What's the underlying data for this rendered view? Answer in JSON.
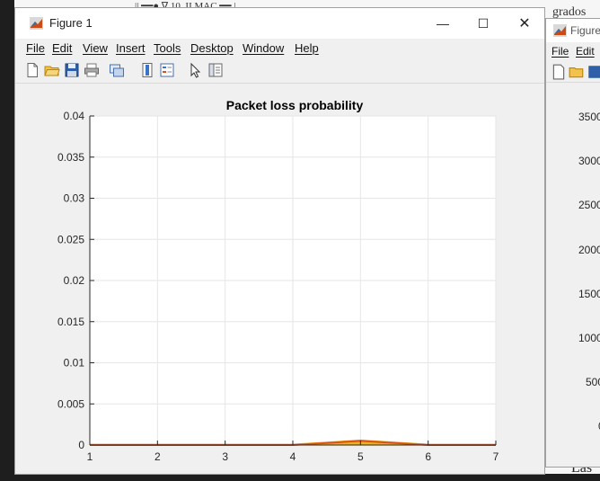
{
  "background": {
    "top_text": "|| ━━● ∇ 10. II MAC ━━ |",
    "right_top_text": "grados",
    "bottom_right_text": "Las"
  },
  "figure1": {
    "title": "Figure 1",
    "controls": {
      "minimize": "—",
      "maximize": "☐",
      "close": "✕"
    },
    "menu": [
      "File",
      "Edit",
      "View",
      "Insert",
      "Tools",
      "Desktop",
      "Window",
      "Help"
    ],
    "toolbar_icons": [
      "new-file-icon",
      "open-folder-icon",
      "save-icon",
      "print-icon",
      "link-axes-icon",
      "colorbar-icon",
      "legend-icon",
      "pointer-icon",
      "property-editor-icon"
    ]
  },
  "figure2": {
    "title": "Figure",
    "menu": [
      "File",
      "Edit"
    ],
    "y_ticks": [
      "3500",
      "3000",
      "2500",
      "2000",
      "1500",
      "1000",
      "500",
      "0"
    ]
  },
  "colors": {
    "series": "#d95319",
    "series_fill": "#edb120",
    "grid": "#e6e6e6",
    "axis": "#262626"
  },
  "chart_data": {
    "type": "area",
    "title": "Packet loss probability",
    "xlabel": "",
    "ylabel": "",
    "xlim": [
      1,
      7
    ],
    "ylim": [
      0,
      0.04
    ],
    "x_ticks": [
      "1",
      "2",
      "3",
      "4",
      "5",
      "6",
      "7"
    ],
    "y_ticks": [
      "0",
      "0.005",
      "0.01",
      "0.015",
      "0.02",
      "0.025",
      "0.03",
      "0.035",
      "0.04"
    ],
    "grid": true,
    "x": [
      1,
      2,
      3,
      4,
      5,
      6,
      7
    ],
    "series": [
      {
        "values": [
          0,
          0,
          0,
          0,
          0.0005,
          0,
          0
        ]
      }
    ]
  }
}
